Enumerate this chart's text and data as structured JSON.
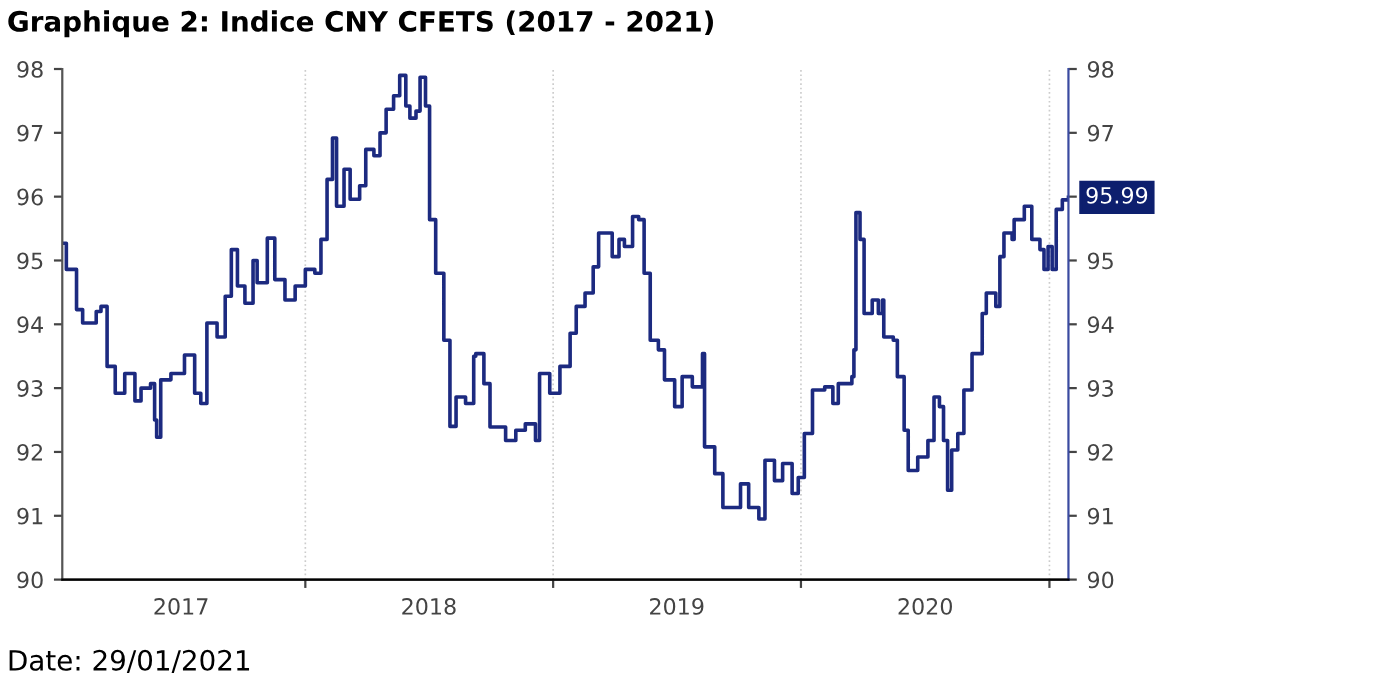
{
  "chart_data": {
    "type": "step",
    "title": "Graphique 2: Indice CNY CFETS (2017 - 2021)",
    "annotations": [
      {
        "text": "95.99",
        "x": "2021-01-29",
        "y": 95.99
      },
      "Date: 29/01/2021"
    ],
    "x": [
      "2017-01-08",
      "2017-01-14",
      "2017-01-26",
      "2017-01-29",
      "2017-02-07",
      "2017-02-27",
      "2017-03-06",
      "2017-03-15",
      "2017-03-27",
      "2017-04-10",
      "2017-04-25",
      "2017-05-04",
      "2017-05-18",
      "2017-05-24",
      "2017-05-27",
      "2017-06-02",
      "2017-06-17",
      "2017-07-07",
      "2017-07-22",
      "2017-07-31",
      "2017-08-09",
      "2017-08-24",
      "2017-09-05",
      "2017-09-14",
      "2017-09-23",
      "2017-10-04",
      "2017-10-16",
      "2017-10-22",
      "2017-11-06",
      "2017-11-17",
      "2017-12-02",
      "2017-12-17",
      "2018-01-01",
      "2018-01-15",
      "2018-01-24",
      "2018-02-02",
      "2018-02-10",
      "2018-02-16",
      "2018-02-27",
      "2018-03-08",
      "2018-03-22",
      "2018-03-31",
      "2018-04-12",
      "2018-04-21",
      "2018-04-30",
      "2018-05-11",
      "2018-05-20",
      "2018-05-29",
      "2018-06-04",
      "2018-06-13",
      "2018-06-19",
      "2018-06-27",
      "2018-07-03",
      "2018-07-12",
      "2018-07-24",
      "2018-08-02",
      "2018-08-11",
      "2018-08-25",
      "2018-09-06",
      "2018-09-09",
      "2018-09-21",
      "2018-09-30",
      "2018-10-23",
      "2018-11-07",
      "2018-11-21",
      "2018-12-06",
      "2018-12-12",
      "2018-12-27",
      "2019-01-11",
      "2019-01-26",
      "2019-02-04",
      "2019-02-17",
      "2019-03-01",
      "2019-03-09",
      "2019-03-29",
      "2019-04-08",
      "2019-04-16",
      "2019-04-28",
      "2019-05-07",
      "2019-05-15",
      "2019-05-24",
      "2019-06-05",
      "2019-06-14",
      "2019-06-29",
      "2019-07-10",
      "2019-07-25",
      "2019-08-09",
      "2019-08-12",
      "2019-08-27",
      "2019-09-08",
      "2019-09-22",
      "2019-10-04",
      "2019-10-16",
      "2019-10-31",
      "2019-11-09",
      "2019-11-23",
      "2019-12-05",
      "2019-12-19",
      "2019-12-28",
      "2020-01-06",
      "2020-01-18",
      "2020-02-05",
      "2020-02-17",
      "2020-02-25",
      "2020-03-16",
      "2020-03-19",
      "2020-03-22",
      "2020-03-28",
      "2020-04-03",
      "2020-04-15",
      "2020-04-24",
      "2020-04-30",
      "2020-05-02",
      "2020-05-16",
      "2020-05-22",
      "2020-06-01",
      "2020-06-07",
      "2020-06-21",
      "2020-07-06",
      "2020-07-15",
      "2020-07-23",
      "2020-07-29",
      "2020-08-04",
      "2020-08-10",
      "2020-08-19",
      "2020-08-28",
      "2020-09-09",
      "2020-09-24",
      "2020-09-30",
      "2020-10-14",
      "2020-10-20",
      "2020-10-26",
      "2020-11-07",
      "2020-11-10",
      "2020-11-25",
      "2020-12-06",
      "2020-12-18",
      "2020-12-24",
      "2020-12-30",
      "2021-01-05",
      "2021-01-11",
      "2021-01-20",
      "2021-01-29"
    ],
    "series": [
      {
        "color": "#1c2a80",
        "values": [
          95.27,
          94.86,
          94.86,
          94.23,
          94.02,
          94.2,
          94.28,
          93.34,
          92.92,
          93.23,
          92.8,
          93.0,
          93.07,
          92.5,
          92.23,
          93.13,
          93.23,
          93.52,
          92.92,
          92.76,
          94.02,
          93.8,
          94.44,
          95.17,
          94.6,
          94.33,
          95.0,
          94.65,
          95.35,
          94.7,
          94.38,
          94.6,
          94.86,
          94.8,
          95.33,
          96.27,
          96.92,
          95.85,
          96.43,
          95.96,
          96.17,
          96.74,
          96.64,
          97.0,
          97.37,
          97.58,
          97.9,
          97.42,
          97.23,
          97.34,
          97.87,
          97.42,
          95.64,
          94.8,
          93.75,
          92.4,
          92.86,
          92.76,
          93.5,
          93.54,
          93.07,
          92.39,
          92.18,
          92.34,
          92.44,
          92.18,
          93.23,
          92.92,
          93.34,
          93.86,
          94.28,
          94.49,
          94.9,
          95.43,
          95.06,
          95.33,
          95.22,
          95.69,
          95.64,
          94.8,
          93.75,
          93.6,
          93.13,
          92.71,
          93.18,
          93.02,
          93.54,
          92.08,
          91.66,
          91.13,
          91.13,
          91.5,
          91.13,
          90.95,
          91.87,
          91.55,
          91.82,
          91.35,
          91.6,
          92.29,
          92.97,
          93.02,
          92.76,
          93.07,
          93.18,
          93.6,
          95.75,
          95.33,
          94.17,
          94.38,
          94.17,
          94.38,
          93.8,
          93.75,
          93.18,
          92.34,
          91.71,
          91.92,
          92.18,
          92.86,
          92.71,
          92.18,
          91.4,
          92.03,
          92.29,
          92.97,
          93.54,
          94.17,
          94.49,
          94.28,
          95.06,
          95.43,
          95.33,
          95.64,
          95.85,
          95.33,
          95.17,
          94.86,
          95.22,
          94.86,
          95.8,
          95.95,
          95.99
        ]
      }
    ],
    "xlim": [
      "2017-01-08",
      "2021-01-29"
    ],
    "xticks": [
      {
        "value": "2017-07-02",
        "label": "2017"
      },
      {
        "value": "2018-01-01",
        "label": null
      },
      {
        "value": "2018-07-02",
        "label": "2018"
      },
      {
        "value": "2019-01-01",
        "label": null
      },
      {
        "value": "2019-07-02",
        "label": "2019"
      },
      {
        "value": "2020-01-01",
        "label": null
      },
      {
        "value": "2020-07-02",
        "label": "2020"
      },
      {
        "value": "2021-01-01",
        "label": null
      }
    ],
    "ylim": [
      90,
      98
    ],
    "yticks": [
      90,
      91,
      92,
      93,
      94,
      95,
      96,
      97,
      98
    ],
    "y2lim": [
      90,
      98
    ],
    "y2ticks": [
      90,
      91,
      92,
      93,
      94,
      95,
      {
        "value": 96,
        "label": null
      },
      97,
      98
    ],
    "grid": "x",
    "legend": false
  }
}
